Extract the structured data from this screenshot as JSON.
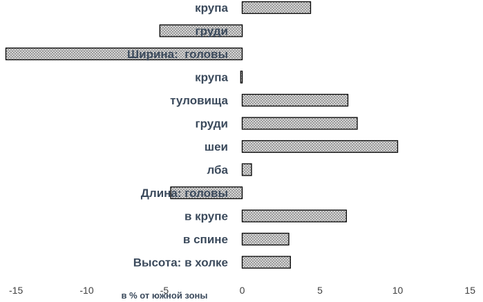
{
  "chart_data": {
    "type": "bar",
    "orientation": "horizontal",
    "categories": [
      "крупа",
      "груди",
      "Ширина:  головы",
      "крупа",
      "туловища",
      "груди",
      "шеи",
      "лба",
      "Длина: головы",
      "в крупе",
      "в спине",
      "Высота: в холке"
    ],
    "values": [
      4.4,
      -5.3,
      -15.2,
      -0.1,
      6.8,
      7.4,
      10.0,
      0.6,
      -4.6,
      6.7,
      3.0,
      3.1
    ],
    "xlabel": "в % от южной зоны",
    "xlim": [
      -15,
      15
    ],
    "xticks": [
      "-15",
      "-10",
      "-5",
      "0",
      "5",
      "10",
      "15"
    ],
    "grid": false,
    "legend": "none",
    "colors": {
      "bar_fill": "#d0d0d0",
      "bar_hatch": "#8a8a8a",
      "bar_stroke": "#000000",
      "label": "#3b4a5c",
      "tick": "#404040"
    }
  }
}
